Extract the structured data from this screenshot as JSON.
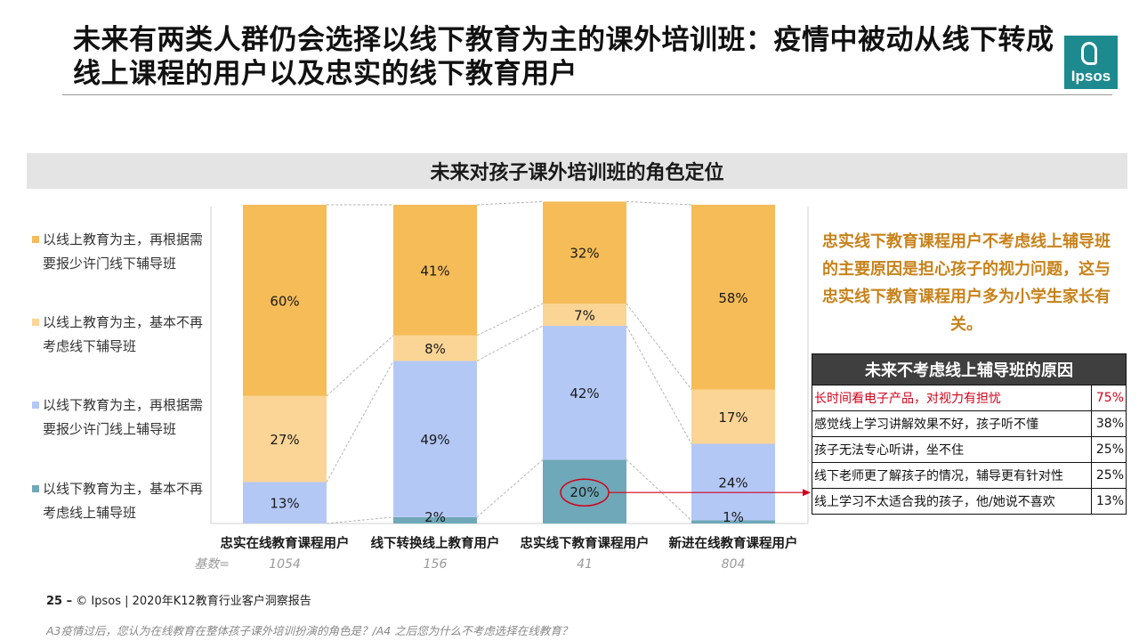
{
  "page": {
    "title": "未来有两类人群仍会选择以线下教育为主的课外培训班：疫情中被动从线下转成线上课程的用户以及忠实的线下教育用户",
    "logo_text": "Ipsos",
    "section_title": "未来对孩子课外培训班的角色定位",
    "annotation": "忠实线下教育课程用户不考虑线上辅导班的主要原因是担心孩子的视力问题，这与忠实线下教育课程用户多为小学生家长有关。",
    "footer_page": "25 –",
    "footer_text": "© Ipsos | 2020年K12教育行业客户洞察报告",
    "question": "A3疫情过后，您认为在线教育在整体孩子课外培训扮演的角色是？/A4 之后您为什么不考虑选择在线教育？"
  },
  "colors": {
    "online_plus_offline": "#f5bc58",
    "online_only": "#fbd596",
    "offline_plus_online": "#b4c8f6",
    "offline_only": "#6fa8b8",
    "annotation": "#c8821a",
    "highlight": "#d0021b"
  },
  "chart_data": {
    "type": "bar",
    "stacked": true,
    "percent": true,
    "ylim": [
      0,
      100
    ],
    "categories": [
      "忠实在线教育课程用户",
      "线下转换线上教育用户",
      "忠实线下教育课程用户",
      "新进在线教育课程用户"
    ],
    "base_label": "基数=",
    "bases": [
      "1054",
      "156",
      "41",
      "804"
    ],
    "series": [
      {
        "name": "以线下教育为主，基本不再考虑线上辅导班",
        "color": "#6fa8b8",
        "values": [
          0,
          2,
          20,
          1
        ],
        "labels": [
          "",
          "2%",
          "20%",
          "1%"
        ]
      },
      {
        "name": "以线下教育为主，再根据需要报少许门线上辅导班",
        "color": "#b4c8f6",
        "values": [
          13,
          49,
          42,
          24
        ],
        "labels": [
          "13%",
          "49%",
          "42%",
          "24%"
        ]
      },
      {
        "name": "以线上教育为主，基本不再考虑线下辅导班",
        "color": "#fbd596",
        "values": [
          27,
          8,
          7,
          17
        ],
        "labels": [
          "27%",
          "8%",
          "7%",
          "17%"
        ]
      },
      {
        "name": "以线上教育为主，再根据需要报少许门线下辅导班",
        "color": "#f5bc58",
        "values": [
          60,
          41,
          32,
          58
        ],
        "labels": [
          "60%",
          "41%",
          "32%",
          "58%"
        ]
      }
    ],
    "legend": [
      {
        "text": "以线上教育为主，再根据需要报少许门线下辅导班",
        "color": "#f5bc58"
      },
      {
        "text": "以线上教育为主，基本不再考虑线下辅导班",
        "color": "#fbd596"
      },
      {
        "text": "以线下教育为主，再根据需要报少许门线上辅导班",
        "color": "#b4c8f6"
      },
      {
        "text": "以线下教育为主，基本不再考虑线上辅导班",
        "color": "#6fa8b8"
      }
    ],
    "legend_position": "left"
  },
  "reasons": {
    "title": "未来不考虑线上辅导班的原因",
    "rows": [
      {
        "text": "长时间看电子产品，对视力有担忧",
        "value": "75%",
        "highlight": true
      },
      {
        "text": "感觉线上学习讲解效果不好，孩子听不懂",
        "value": "38%",
        "highlight": false
      },
      {
        "text": "孩子无法专心听讲，坐不住",
        "value": "25%",
        "highlight": false
      },
      {
        "text": "线下老师更了解孩子的情况，辅导更有针对性",
        "value": "25%",
        "highlight": false
      },
      {
        "text": "线上学习不太适合我的孩子，他/她说不喜欢",
        "value": "13%",
        "highlight": false
      }
    ]
  }
}
